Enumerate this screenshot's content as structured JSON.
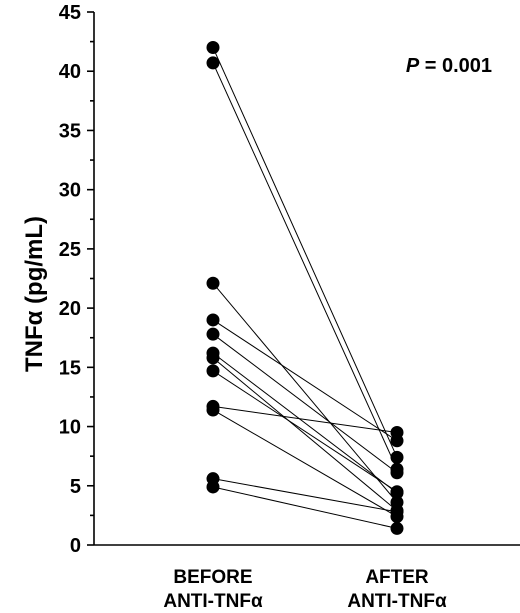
{
  "chart_data": {
    "type": "scatter",
    "ylabel": "TNFα (pg/mL)",
    "ylim": [
      0,
      45
    ],
    "yticks": [
      0,
      5,
      10,
      15,
      20,
      25,
      30,
      35,
      40,
      45
    ],
    "categories": [
      [
        "BEFORE",
        "ANTI-TNFα"
      ],
      [
        "AFTER",
        "ANTI-TNFα"
      ]
    ],
    "annotation": {
      "p_label": "P",
      "p_value": " = 0.001"
    },
    "pairs": [
      {
        "before": 42.0,
        "after": 7.4
      },
      {
        "before": 40.7,
        "after": 6.4
      },
      {
        "before": 22.1,
        "after": 3.6
      },
      {
        "before": 19.0,
        "after": 8.8
      },
      {
        "before": 17.8,
        "after": 6.1
      },
      {
        "before": 16.2,
        "after": 4.4
      },
      {
        "before": 15.8,
        "after": 2.9
      },
      {
        "before": 14.7,
        "after": 4.5
      },
      {
        "before": 11.7,
        "after": 9.5
      },
      {
        "before": 11.4,
        "after": 2.4
      },
      {
        "before": 5.6,
        "after": 2.8
      },
      {
        "before": 4.9,
        "after": 1.4
      }
    ],
    "grid": false,
    "legend": "none"
  }
}
